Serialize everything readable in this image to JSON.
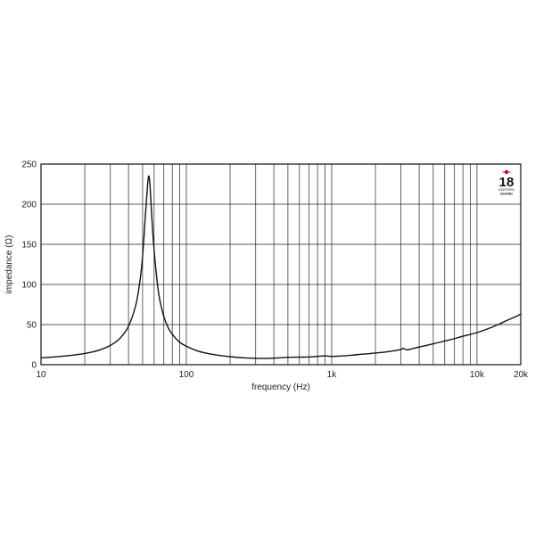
{
  "chart_data": {
    "type": "line",
    "title": "",
    "xlabel": "frequency (Hz)",
    "ylabel": "impedance (Ω)",
    "x_scale": "log",
    "xlim": [
      10,
      20000
    ],
    "ylim": [
      0,
      250
    ],
    "grid": true,
    "x_ticks": [
      {
        "value": 10,
        "label": "10"
      },
      {
        "value": 100,
        "label": "100"
      },
      {
        "value": 1000,
        "label": "1k"
      },
      {
        "value": 10000,
        "label": "10k"
      },
      {
        "value": 20000,
        "label": "20k"
      }
    ],
    "y_ticks": [
      {
        "value": 0,
        "label": "0"
      },
      {
        "value": 50,
        "label": "50"
      },
      {
        "value": 100,
        "label": "100"
      },
      {
        "value": 150,
        "label": "150"
      },
      {
        "value": 200,
        "label": "200"
      },
      {
        "value": 250,
        "label": "250"
      }
    ],
    "series": [
      {
        "color": "#111111",
        "points": [
          [
            10,
            8.5
          ],
          [
            12,
            9.5
          ],
          [
            15,
            11
          ],
          [
            20,
            14
          ],
          [
            25,
            18
          ],
          [
            30,
            24
          ],
          [
            35,
            33
          ],
          [
            40,
            48
          ],
          [
            45,
            75
          ],
          [
            48,
            105
          ],
          [
            50,
            135
          ],
          [
            52,
            180
          ],
          [
            54,
            222
          ],
          [
            55,
            235
          ],
          [
            56,
            228
          ],
          [
            57,
            205
          ],
          [
            59,
            160
          ],
          [
            62,
            115
          ],
          [
            65,
            85
          ],
          [
            70,
            60
          ],
          [
            75,
            46
          ],
          [
            80,
            38
          ],
          [
            90,
            28
          ],
          [
            100,
            23
          ],
          [
            120,
            17
          ],
          [
            150,
            13
          ],
          [
            200,
            10
          ],
          [
            250,
            8.5
          ],
          [
            300,
            8
          ],
          [
            350,
            7.8
          ],
          [
            400,
            8.2
          ],
          [
            500,
            9.2
          ],
          [
            600,
            9.4
          ],
          [
            700,
            9.6
          ],
          [
            800,
            10.4
          ],
          [
            900,
            11
          ],
          [
            1000,
            10.4
          ],
          [
            1200,
            11
          ],
          [
            1500,
            12.5
          ],
          [
            2000,
            14.5
          ],
          [
            2500,
            16.5
          ],
          [
            3000,
            19
          ],
          [
            3100,
            20.5
          ],
          [
            3300,
            18.5
          ],
          [
            3600,
            20
          ],
          [
            4000,
            22
          ],
          [
            5000,
            26
          ],
          [
            6000,
            29.5
          ],
          [
            7000,
            32.5
          ],
          [
            8000,
            35.5
          ],
          [
            10000,
            40
          ],
          [
            12000,
            45
          ],
          [
            14000,
            50
          ],
          [
            16000,
            55
          ],
          [
            18000,
            59
          ],
          [
            20000,
            63
          ]
        ]
      }
    ],
    "logo": {
      "number": "18",
      "line1": "EIGHTEEN",
      "line2": "SOUND",
      "accent_color": "#d0021b"
    }
  }
}
